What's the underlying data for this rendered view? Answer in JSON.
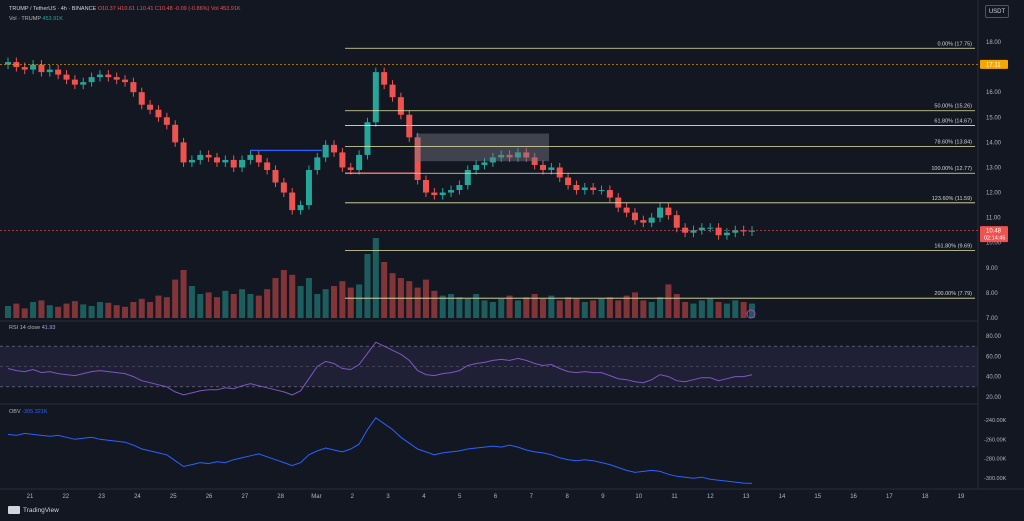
{
  "header": {
    "symbol": "TRUMP / TetherUS · 4h · BINANCE",
    "ohlc": "O10.37 H10.61 L10.41 C10.48 -0.09 (-0.86%)",
    "vol_value": "Vol 453.91K",
    "vol_label": "Vol · TRUMP",
    "vol_amount": "453.91K",
    "currency": "USDT"
  },
  "colors": {
    "up": "#26a69a",
    "down": "#ef5350",
    "fib": "#e6e6a6",
    "rsi": "#7e57c2",
    "obv": "#2962ff",
    "bg": "#131722"
  },
  "chart_data": {
    "type": "candlestick",
    "price_axis": {
      "ticks": [
        "18.00",
        "17.00",
        "16.00",
        "15.00",
        "14.00",
        "13.00",
        "12.00",
        "11.00",
        "10.00",
        "9.00",
        "8.00",
        "7.00"
      ],
      "min": 7.0,
      "max": 18.0
    },
    "x_axis": {
      "labels": [
        "21",
        "22",
        "23",
        "24",
        "25",
        "26",
        "27",
        "28",
        "Mar",
        "2",
        "3",
        "4",
        "5",
        "6",
        "7",
        "8",
        "9",
        "10",
        "11",
        "12",
        "13",
        "14",
        "15",
        "16",
        "17",
        "18",
        "19"
      ]
    },
    "fib_levels": [
      {
        "label": "0.00% (17.75)",
        "price": 17.75
      },
      {
        "label": "50.00% (15.26)",
        "price": 15.26
      },
      {
        "label": "61.80% (14.67)",
        "price": 14.67
      },
      {
        "label": "78.60% (13.84)",
        "price": 13.84
      },
      {
        "label": "100.00% (12.77)",
        "price": 12.77
      },
      {
        "label": "123.60% (11.59)",
        "price": 11.59
      },
      {
        "label": "161.80% (9.69)",
        "price": 9.69
      },
      {
        "label": "200.00% (7.79)",
        "price": 7.79
      }
    ],
    "price_tags": [
      {
        "text": "17.11",
        "price": 17.11,
        "color": "#f7a600"
      },
      {
        "text": "10.48",
        "sub": "02:14:45",
        "price": 10.48,
        "color": "#ef5350"
      }
    ],
    "closes": [
      17.2,
      17.0,
      16.9,
      17.1,
      16.8,
      16.9,
      16.7,
      16.5,
      16.3,
      16.4,
      16.6,
      16.7,
      16.6,
      16.5,
      16.4,
      16.0,
      15.5,
      15.3,
      15.0,
      14.7,
      14.0,
      13.2,
      13.3,
      13.5,
      13.4,
      13.2,
      13.3,
      13.0,
      13.3,
      13.5,
      13.2,
      12.9,
      12.4,
      12.0,
      11.3,
      11.5,
      12.9,
      13.4,
      13.9,
      13.6,
      13.0,
      12.9,
      13.5,
      14.8,
      16.8,
      16.3,
      15.8,
      15.1,
      14.2,
      12.5,
      12.0,
      11.9,
      12.0,
      12.1,
      12.3,
      12.9,
      13.1,
      13.2,
      13.4,
      13.5,
      13.4,
      13.6,
      13.4,
      13.1,
      12.9,
      13.0,
      12.6,
      12.3,
      12.1,
      12.2,
      12.1,
      12.1,
      11.8,
      11.4,
      11.2,
      10.9,
      10.8,
      11.0,
      11.4,
      11.1,
      10.6,
      10.4,
      10.5,
      10.6,
      10.6,
      10.3,
      10.4,
      10.5,
      10.45,
      10.48
    ],
    "volume_relative": [
      0.15,
      0.18,
      0.12,
      0.2,
      0.22,
      0.16,
      0.14,
      0.18,
      0.21,
      0.17,
      0.15,
      0.2,
      0.19,
      0.16,
      0.14,
      0.2,
      0.24,
      0.2,
      0.28,
      0.26,
      0.48,
      0.6,
      0.4,
      0.3,
      0.32,
      0.26,
      0.34,
      0.3,
      0.36,
      0.3,
      0.28,
      0.36,
      0.5,
      0.6,
      0.54,
      0.4,
      0.5,
      0.3,
      0.36,
      0.4,
      0.46,
      0.38,
      0.42,
      0.8,
      1.0,
      0.7,
      0.56,
      0.5,
      0.46,
      0.38,
      0.48,
      0.34,
      0.28,
      0.3,
      0.26,
      0.24,
      0.3,
      0.22,
      0.2,
      0.24,
      0.28,
      0.22,
      0.26,
      0.3,
      0.24,
      0.28,
      0.22,
      0.26,
      0.24,
      0.2,
      0.22,
      0.24,
      0.26,
      0.22,
      0.28,
      0.32,
      0.22,
      0.2,
      0.26,
      0.42,
      0.3,
      0.2,
      0.18,
      0.22,
      0.24,
      0.2,
      0.18,
      0.22,
      0.2,
      0.18
    ],
    "rsi": {
      "label": "RSI 14 close",
      "value": "41.93",
      "ticks": [
        "80.00",
        "60.00",
        "40.00",
        "20.00"
      ],
      "values": [
        48,
        46,
        45,
        47,
        44,
        45,
        43,
        42,
        41,
        43,
        45,
        46,
        45,
        44,
        43,
        40,
        36,
        34,
        32,
        30,
        25,
        22,
        24,
        26,
        27,
        27,
        29,
        28,
        31,
        33,
        31,
        29,
        27,
        25,
        22,
        26,
        38,
        50,
        55,
        53,
        48,
        47,
        52,
        63,
        74,
        70,
        66,
        62,
        56,
        46,
        42,
        41,
        43,
        44,
        46,
        51,
        53,
        54,
        56,
        57,
        56,
        58,
        56,
        53,
        51,
        52,
        48,
        45,
        44,
        45,
        44,
        44,
        41,
        38,
        37,
        35,
        34,
        37,
        42,
        40,
        36,
        35,
        37,
        39,
        39,
        36,
        38,
        40,
        40,
        41.93
      ]
    },
    "obv": {
      "label": "OBV",
      "value": "-305.321K",
      "ticks": [
        "-240.00K",
        "-260.00K",
        "-280.00K",
        "-300.00K"
      ],
      "values": [
        -255,
        -256,
        -254,
        -255,
        -256,
        -257,
        -256,
        -258,
        -260,
        -259,
        -258,
        -260,
        -261,
        -262,
        -263,
        -266,
        -270,
        -272,
        -274,
        -276,
        -282,
        -288,
        -286,
        -284,
        -285,
        -283,
        -284,
        -281,
        -279,
        -277,
        -275,
        -278,
        -281,
        -284,
        -287,
        -284,
        -276,
        -272,
        -269,
        -271,
        -273,
        -270,
        -265,
        -250,
        -238,
        -244,
        -250,
        -258,
        -264,
        -270,
        -273,
        -276,
        -274,
        -273,
        -272,
        -270,
        -269,
        -268,
        -267,
        -268,
        -266,
        -268,
        -271,
        -273,
        -274,
        -276,
        -279,
        -281,
        -282,
        -281,
        -282,
        -284,
        -286,
        -289,
        -292,
        -294,
        -293,
        -292,
        -293,
        -296,
        -298,
        -299,
        -300,
        -299,
        -301,
        -302,
        -303,
        -304,
        -305,
        -305.321
      ]
    }
  },
  "footer": {
    "brand": "TradingView"
  }
}
